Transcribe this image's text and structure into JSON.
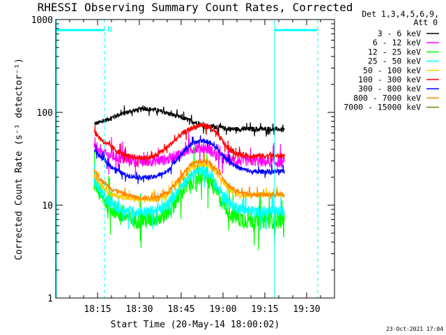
{
  "chart_data": {
    "type": "line",
    "title": "RHESSI Observing Summary Count Rates, Corrected",
    "xlabel": "Start Time (20-May-14 18:00:02)",
    "ylabel": "Corrected Count Rate (s⁻¹ detector⁻¹)",
    "yscale": "log",
    "ylim": [
      1,
      1000
    ],
    "y_ticks": [
      "1",
      "10",
      "100",
      "1000"
    ],
    "xlim_minutes": [
      0,
      100
    ],
    "x_ticks": [
      {
        "minute": 15,
        "label": "18:15"
      },
      {
        "minute": 30,
        "label": "18:30"
      },
      {
        "minute": 45,
        "label": "18:45"
      },
      {
        "minute": 60,
        "label": "19:00"
      },
      {
        "minute": 75,
        "label": "19:15"
      },
      {
        "minute": 90,
        "label": "19:30"
      }
    ],
    "data_range_minutes": [
      13.8,
      82
    ],
    "legend_header": [
      "Det 1,3,4,5,6,9,",
      "Att 0"
    ],
    "legend_placement": "right",
    "series": [
      {
        "name": "3 - 6 keV",
        "color": "#000000",
        "noise": 0.025,
        "points": [
          [
            13.8,
            75
          ],
          [
            17,
            80
          ],
          [
            22,
            93
          ],
          [
            27,
            103
          ],
          [
            32,
            110
          ],
          [
            36,
            106
          ],
          [
            40,
            98
          ],
          [
            45,
            88
          ],
          [
            50,
            78
          ],
          [
            54,
            70
          ],
          [
            58,
            70
          ],
          [
            62,
            66
          ],
          [
            67,
            66
          ],
          [
            72,
            66
          ],
          [
            76,
            66
          ],
          [
            80,
            66
          ],
          [
            82,
            64
          ]
        ]
      },
      {
        "name": "6 - 12 keV",
        "color": "#ff00ff",
        "noise": 0.06,
        "points": [
          [
            13.8,
            42
          ],
          [
            16,
            36
          ],
          [
            20,
            34
          ],
          [
            25,
            31
          ],
          [
            30,
            30
          ],
          [
            35,
            30
          ],
          [
            40,
            31
          ],
          [
            44,
            35
          ],
          [
            48,
            40
          ],
          [
            52,
            42
          ],
          [
            55,
            40
          ],
          [
            58,
            34
          ],
          [
            63,
            30
          ],
          [
            68,
            30
          ],
          [
            72,
            30
          ],
          [
            76,
            29
          ],
          [
            80,
            29
          ],
          [
            82,
            29
          ]
        ]
      },
      {
        "name": "12 - 25 keV",
        "color": "#00ff00",
        "noise": 0.1,
        "points": [
          [
            13.8,
            18
          ],
          [
            16,
            13
          ],
          [
            19,
            10
          ],
          [
            23,
            8
          ],
          [
            28,
            7
          ],
          [
            33,
            7
          ],
          [
            38,
            7.5
          ],
          [
            42,
            10
          ],
          [
            46,
            15
          ],
          [
            50,
            20
          ],
          [
            53,
            21
          ],
          [
            56,
            17
          ],
          [
            59,
            12
          ],
          [
            63,
            8
          ],
          [
            67,
            7
          ],
          [
            72,
            7
          ],
          [
            78,
            7
          ],
          [
            82,
            7
          ]
        ]
      },
      {
        "name": "25 - 50 keV",
        "color": "#00ffff",
        "noise": 0.06,
        "points": [
          [
            13.8,
            19
          ],
          [
            16,
            14
          ],
          [
            19,
            11
          ],
          [
            23,
            9
          ],
          [
            28,
            8.5
          ],
          [
            33,
            8.5
          ],
          [
            38,
            9
          ],
          [
            42,
            12
          ],
          [
            46,
            18
          ],
          [
            50,
            23
          ],
          [
            53,
            24
          ],
          [
            56,
            20
          ],
          [
            59,
            14
          ],
          [
            63,
            10
          ],
          [
            67,
            9
          ],
          [
            72,
            8.5
          ],
          [
            78,
            8.5
          ],
          [
            82,
            8.5
          ]
        ]
      },
      {
        "name": "50 - 100 keV",
        "color": "#ffcc00",
        "noise": 0.03,
        "points": [
          [
            13.8,
            22
          ],
          [
            16,
            17
          ],
          [
            20,
            13
          ],
          [
            25,
            12
          ],
          [
            30,
            11.5
          ],
          [
            35,
            11.5
          ],
          [
            40,
            13
          ],
          [
            44,
            18
          ],
          [
            48,
            24
          ],
          [
            52,
            28
          ],
          [
            55,
            27
          ],
          [
            58,
            21
          ],
          [
            62,
            15
          ],
          [
            66,
            13
          ],
          [
            70,
            13
          ],
          [
            76,
            13
          ],
          [
            82,
            13
          ]
        ]
      },
      {
        "name": "100 - 300 keV",
        "color": "#ff0000",
        "noise": 0.03,
        "points": [
          [
            13.8,
            62
          ],
          [
            16,
            52
          ],
          [
            20,
            42
          ],
          [
            25,
            34
          ],
          [
            30,
            32
          ],
          [
            35,
            33
          ],
          [
            40,
            42
          ],
          [
            45,
            58
          ],
          [
            49,
            68
          ],
          [
            52,
            73
          ],
          [
            55,
            70
          ],
          [
            58,
            58
          ],
          [
            62,
            40
          ],
          [
            66,
            35
          ],
          [
            70,
            34
          ],
          [
            76,
            34
          ],
          [
            82,
            34
          ]
        ]
      },
      {
        "name": "300 - 800 keV",
        "color": "#0000ff",
        "noise": 0.025,
        "points": [
          [
            13.8,
            40
          ],
          [
            16,
            33
          ],
          [
            20,
            26
          ],
          [
            25,
            21
          ],
          [
            30,
            20
          ],
          [
            35,
            20
          ],
          [
            40,
            23
          ],
          [
            44,
            33
          ],
          [
            48,
            44
          ],
          [
            52,
            50
          ],
          [
            55,
            48
          ],
          [
            58,
            40
          ],
          [
            62,
            30
          ],
          [
            66,
            25
          ],
          [
            70,
            23
          ],
          [
            76,
            23
          ],
          [
            82,
            23
          ]
        ]
      },
      {
        "name": "800 - 7000 keV",
        "color": "#ff8800",
        "noise": 0.025,
        "points": [
          [
            13.8,
            24
          ],
          [
            16,
            19
          ],
          [
            20,
            15
          ],
          [
            25,
            13
          ],
          [
            30,
            12
          ],
          [
            35,
            12
          ],
          [
            40,
            13.5
          ],
          [
            44,
            19
          ],
          [
            48,
            27
          ],
          [
            52,
            30
          ],
          [
            55,
            29
          ],
          [
            58,
            23
          ],
          [
            62,
            16
          ],
          [
            66,
            14
          ],
          [
            70,
            13
          ],
          [
            76,
            13
          ],
          [
            82,
            13
          ]
        ]
      },
      {
        "name": "7000 - 15000 keV",
        "color": "#668800",
        "noise": 0.0,
        "points": []
      }
    ],
    "annotations": [
      {
        "type": "flag-bar",
        "label": "N",
        "start_minute": 0,
        "end_minute": 17.5,
        "y_value": 770,
        "color": "#00ffff"
      },
      {
        "type": "flag-bar",
        "label": "",
        "start_minute": 78.5,
        "end_minute": 94,
        "y_value": 770,
        "color": "#00ffff"
      }
    ],
    "vlines_solid_minutes": [
      78.5
    ],
    "vlines_dashed_minutes": [
      17.5,
      94
    ]
  },
  "timestamp": "23-Oct-2021 17:04",
  "colors": {
    "axis": "#000000",
    "flag": "#00ffff",
    "background": "#ffffff"
  }
}
